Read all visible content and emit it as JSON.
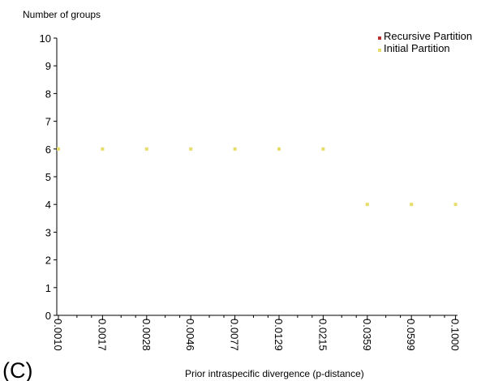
{
  "panel_label": "(C)",
  "chart_data": {
    "type": "scatter",
    "title": "",
    "xlabel": "Prior intraspecific divergence (p-distance)",
    "ylabel": "Number of groups",
    "x_scale": "log",
    "x_tick_labels": [
      "0.0010",
      "0.0017",
      "0.0028",
      "0.0046",
      "0.0077",
      "0.0129",
      "0.0215",
      "0.0359",
      "0.0599",
      "0.1000"
    ],
    "ylim": [
      0,
      10
    ],
    "y_ticks": [
      0,
      1,
      2,
      3,
      4,
      5,
      6,
      7,
      8,
      9,
      10
    ],
    "grid": false,
    "legend_position": "top-right",
    "series": [
      {
        "name": "Recursive Partition",
        "color": "#b5332c",
        "x": [],
        "y": []
      },
      {
        "name": "Initial Partition",
        "color": "#e8dc6a",
        "x": [
          0.001,
          0.0017,
          0.0028,
          0.0046,
          0.0077,
          0.0129,
          0.0215,
          0.0359,
          0.0599,
          0.1
        ],
        "y": [
          6,
          6,
          6,
          6,
          6,
          6,
          6,
          4,
          4,
          4
        ]
      }
    ]
  }
}
